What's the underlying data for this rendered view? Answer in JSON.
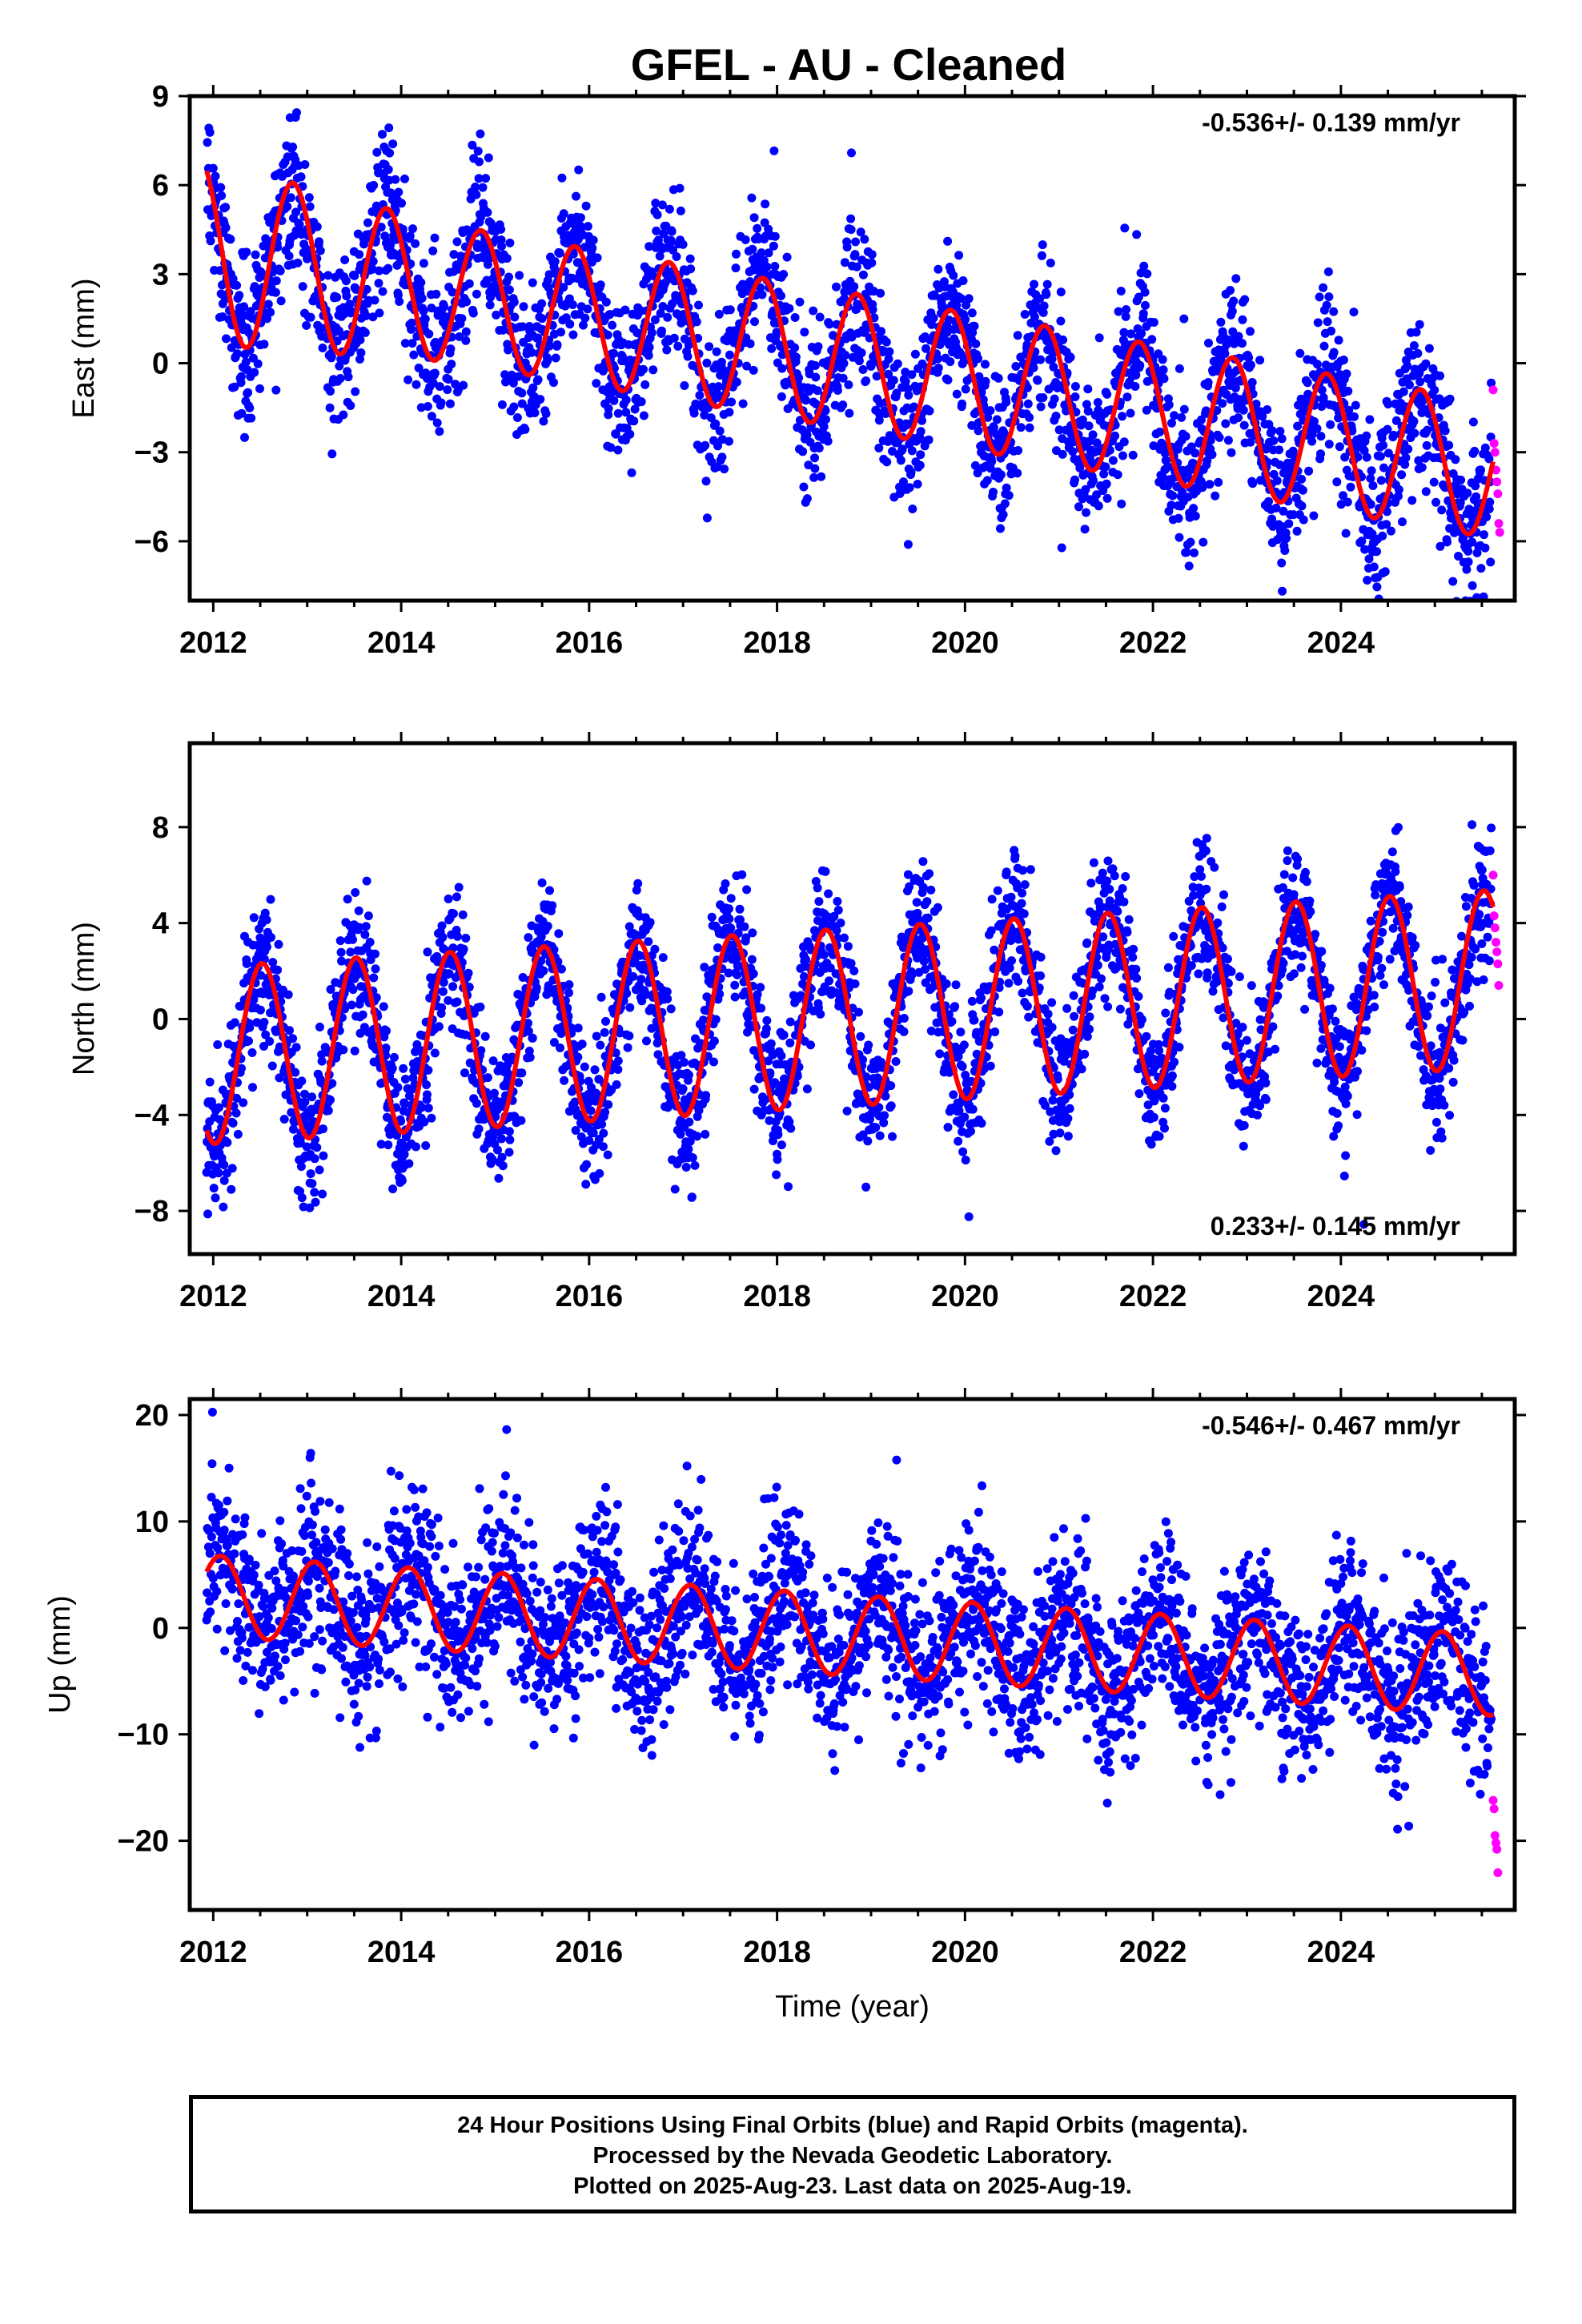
{
  "title": "GFEL  - AU - Cleaned",
  "footer": {
    "line1": "24 Hour Positions Using Final Orbits (blue) and Rapid Orbits (magenta).",
    "line2": "Processed by the Nevada Geodetic Laboratory.",
    "line3": "Plotted on 2025-Aug-23. Last data on 2025-Aug-19."
  },
  "colors": {
    "final": "#0000ff",
    "rapid": "#ff00ff",
    "fit": "#ff0000"
  },
  "chart_data": [
    {
      "type": "scatter",
      "name": "east",
      "ylabel": "East (mm)",
      "xlabel": "",
      "rate": "-0.536+/- 0.139 mm/yr",
      "rate_position": "top-right",
      "xlim": [
        2011.75,
        2025.85
      ],
      "ylim": [
        -8,
        9
      ],
      "xticks": [
        2012,
        2014,
        2016,
        2018,
        2020,
        2022,
        2024
      ],
      "yticks": [
        -6,
        -3,
        0,
        3,
        6,
        9
      ],
      "x_tick_labels": [
        "2012",
        "2014",
        "2016",
        "2018",
        "2020",
        "2022",
        "2024"
      ],
      "y_tick_labels": [
        "−6",
        "−3",
        "0",
        "3",
        "6",
        "9"
      ],
      "fit": {
        "offset": 3.7,
        "rate": -0.536,
        "epoch": 2012.0,
        "annual_amp": 2.3,
        "annual_phase": 2012.85,
        "decay": 0.8
      },
      "scatter_sd": 1.3,
      "rapid_points": [
        [
          2025.62,
          -0.9
        ],
        [
          2025.63,
          -2.7
        ],
        [
          2025.64,
          -3.0
        ],
        [
          2025.65,
          -3.6
        ],
        [
          2025.66,
          -4.0
        ],
        [
          2025.67,
          -4.4
        ],
        [
          2025.68,
          -5.4
        ],
        [
          2025.69,
          -5.7
        ]
      ]
    },
    {
      "type": "scatter",
      "name": "north",
      "ylabel": "North (mm)",
      "xlabel": "",
      "rate": "0.233+/- 0.145 mm/yr",
      "rate_position": "bottom-right",
      "xlim": [
        2011.75,
        2025.85
      ],
      "ylim": [
        -9.8,
        11.5
      ],
      "xticks": [
        2012,
        2014,
        2016,
        2018,
        2020,
        2022,
        2024
      ],
      "yticks": [
        -8,
        -4,
        0,
        4,
        8
      ],
      "x_tick_labels": [
        "2012",
        "2014",
        "2016",
        "2018",
        "2020",
        "2022",
        "2024"
      ],
      "y_tick_labels": [
        "−8",
        "−4",
        "0",
        "4",
        "8"
      ],
      "fit": {
        "offset": -1.5,
        "rate": 0.233,
        "epoch": 2012.0,
        "annual_amp": 3.7,
        "annual_phase": 2012.52,
        "decay": 0
      },
      "scatter_sd": 1.4,
      "rapid_points": [
        [
          2025.62,
          6.0
        ],
        [
          2025.63,
          4.3
        ],
        [
          2025.64,
          3.8
        ],
        [
          2025.65,
          3.2
        ],
        [
          2025.66,
          2.8
        ],
        [
          2025.67,
          2.3
        ],
        [
          2025.68,
          1.4
        ]
      ]
    },
    {
      "type": "scatter",
      "name": "up",
      "ylabel": "Up (mm)",
      "xlabel": "Time (year)",
      "rate": "-0.546+/- 0.467 mm/yr",
      "rate_position": "top-right",
      "xlim": [
        2011.75,
        2025.85
      ],
      "ylim": [
        -26.5,
        21.5
      ],
      "xticks": [
        2012,
        2014,
        2016,
        2018,
        2020,
        2022,
        2024
      ],
      "yticks": [
        -20,
        -10,
        0,
        10,
        20
      ],
      "x_tick_labels": [
        "2012",
        "2014",
        "2016",
        "2018",
        "2020",
        "2022",
        "2024"
      ],
      "y_tick_labels": [
        "−20",
        "−10",
        "0",
        "10",
        "20"
      ],
      "fit": {
        "offset": 3.0,
        "rate": -0.546,
        "epoch": 2012.0,
        "annual_amp": 3.8,
        "annual_phase": 2013.08,
        "decay": 0
      },
      "scatter_sd": 4.0,
      "rapid_points": [
        [
          2025.62,
          -16.2
        ],
        [
          2025.63,
          -17.0
        ],
        [
          2025.64,
          -19.5
        ],
        [
          2025.65,
          -20.2
        ],
        [
          2025.66,
          -20.8
        ],
        [
          2025.67,
          -23.0
        ]
      ]
    }
  ]
}
